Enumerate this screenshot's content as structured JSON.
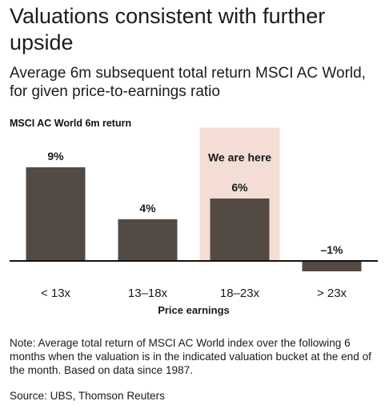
{
  "title": "Valuations consistent with further upside",
  "subtitle": "Average 6m subsequent total return MSCI AC World, for given price-to-earnings ratio",
  "chart_data": {
    "type": "bar",
    "ylabel": "MSCI AC World 6m return",
    "xlabel": "Price earnings",
    "categories": [
      "< 13x",
      "13–18x",
      "18–23x",
      "> 23x"
    ],
    "values": [
      9,
      4,
      6,
      -1
    ],
    "data_labels": [
      "9%",
      "4%",
      "6%",
      "–1%"
    ],
    "highlight": {
      "category_index": 2,
      "label": "We are here"
    },
    "ylim": [
      -1.2,
      12.8
    ],
    "grid": false,
    "bar_color": "#544a44",
    "highlight_color": "#f3ddd5"
  },
  "note": "Note: Average total return of MSCI AC World index over the following 6 months when the valuation is in the indicated valuation bucket at the end of the month. Based on data since 1987.",
  "source": "Source: UBS, Thomson Reuters"
}
